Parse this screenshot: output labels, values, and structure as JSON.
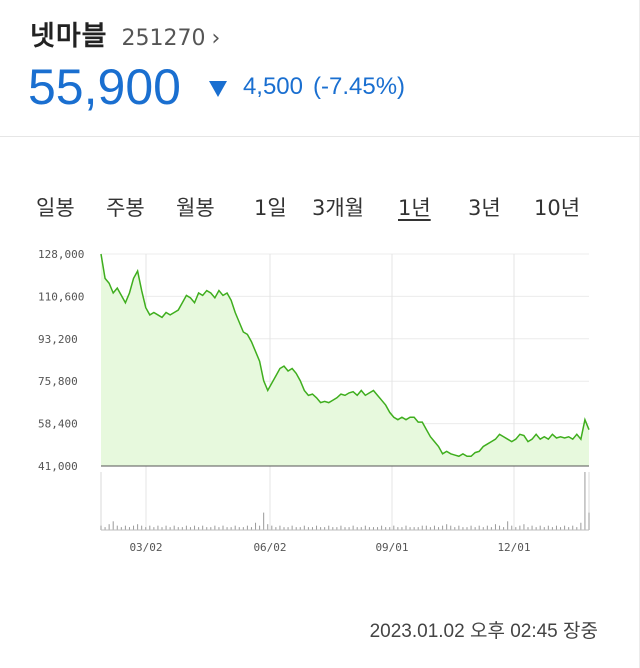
{
  "stock": {
    "name": "넷마블",
    "code": "251270",
    "chevron": "›",
    "price": "55,900",
    "direction_icon": "down-triangle-icon",
    "change": "4,500",
    "rate": "(-7.45%)",
    "accent_color": "#1a6fd0"
  },
  "tabs": [
    {
      "label": "일봉",
      "active": false
    },
    {
      "label": "주봉",
      "active": false
    },
    {
      "label": "월봉",
      "active": false
    },
    {
      "label": "1일",
      "active": false
    },
    {
      "label": "3개월",
      "active": false
    },
    {
      "label": "1년",
      "active": true
    },
    {
      "label": "3년",
      "active": false
    },
    {
      "label": "10년",
      "active": false
    }
  ],
  "chart_data": {
    "type": "area",
    "title": "",
    "xlabel": "",
    "ylabel": "",
    "line_color": "#3fae1e",
    "fill_color": "#e7f9dd",
    "ylim": [
      41000,
      128000
    ],
    "y_ticks": [
      "128,000",
      "110,600",
      "93,200",
      "75,800",
      "58,400",
      "41,000"
    ],
    "x_ticks": [
      "03/02",
      "06/02",
      "09/01",
      "12/01"
    ],
    "grid": true,
    "series": [
      {
        "values": [
          128000,
          118000,
          116000,
          112000,
          114000,
          111000,
          108000,
          112000,
          118000,
          121000,
          113000,
          106000,
          103000,
          104000,
          103000,
          102000,
          104000,
          103000,
          104000,
          105000,
          108000,
          111000,
          110000,
          108000,
          112000,
          111000,
          113000,
          112000,
          110000,
          113000,
          111000,
          112000,
          109000,
          104000,
          100000,
          96000,
          95000,
          92000,
          88000,
          84000,
          76000,
          72000,
          75000,
          78000,
          81000,
          82000,
          80000,
          81000,
          79000,
          76000,
          72000,
          70000,
          70500,
          69000,
          67000,
          67500,
          67000,
          68000,
          69000,
          70500,
          70000,
          71000,
          71500,
          70000,
          72000,
          70000,
          71000,
          72000,
          70000,
          68000,
          66000,
          63000,
          61000,
          60000,
          61000,
          60000,
          61000,
          61000,
          59000,
          59000,
          56000,
          53000,
          51000,
          49000,
          46000,
          47000,
          46000,
          45500,
          45000,
          46000,
          45000,
          45000,
          46500,
          47000,
          49000,
          50000,
          51000,
          52000,
          54000,
          53000,
          52000,
          51000,
          52000,
          54000,
          53500,
          51000,
          52000,
          54000,
          52000,
          53000,
          52000,
          54000,
          52500,
          53000,
          52500,
          53000,
          52000,
          54000,
          52000,
          60000,
          55900
        ]
      }
    ],
    "volume": [
      3,
      2,
      4,
      6,
      3,
      2,
      3,
      2,
      3,
      4,
      3,
      2,
      3,
      2,
      3,
      2,
      3,
      2,
      3,
      2,
      2,
      3,
      2,
      3,
      2,
      3,
      2,
      2,
      3,
      2,
      3,
      2,
      2,
      3,
      2,
      2,
      3,
      2,
      5,
      3,
      12,
      4,
      3,
      2,
      3,
      2,
      2,
      3,
      2,
      2,
      3,
      2,
      2,
      3,
      2,
      2,
      3,
      2,
      2,
      3,
      2,
      2,
      3,
      2,
      2,
      3,
      2,
      2,
      2,
      3,
      2,
      2,
      3,
      2,
      2,
      3,
      2,
      2,
      2,
      3,
      3,
      2,
      3,
      2,
      3,
      4,
      3,
      2,
      3,
      2,
      2,
      3,
      2,
      3,
      2,
      3,
      2,
      4,
      3,
      2,
      6,
      3,
      2,
      3,
      4,
      2,
      3,
      2,
      3,
      2,
      3,
      2,
      3,
      2,
      3,
      2,
      3,
      2,
      5,
      40,
      12
    ]
  },
  "timestamp": "2023.01.02  오후 02:45 장중"
}
